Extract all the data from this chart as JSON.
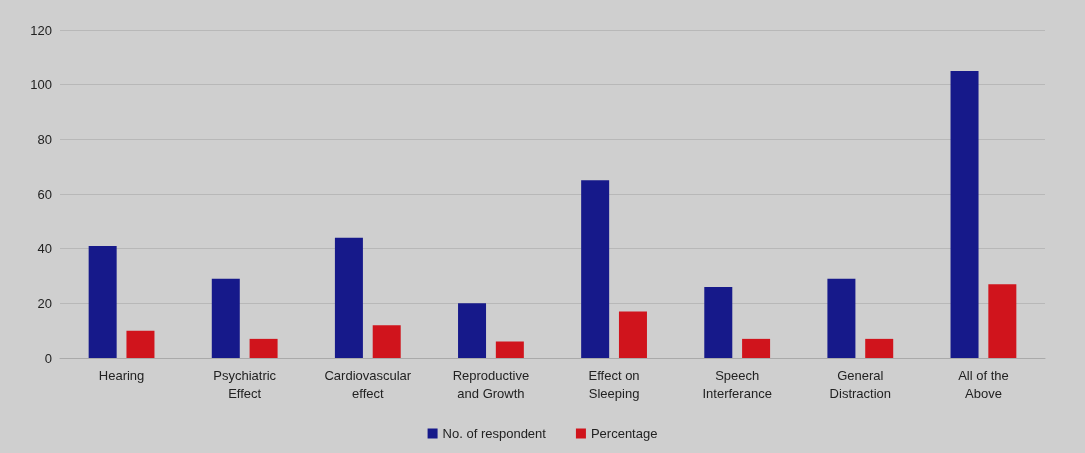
{
  "chart_data": {
    "type": "bar",
    "categories": [
      "Hearing",
      "Psychiatric\nEffect",
      "Cardiovascular\neffect",
      "Reproductive\nand Growth",
      "Effect on\nSleeping",
      "Speech\nInterferance",
      "General\nDistraction",
      "All of the\nAbove"
    ],
    "series": [
      {
        "name": "No. of respondent",
        "color": "#16198a",
        "values": [
          41,
          29,
          44,
          20,
          65,
          26,
          29,
          105
        ]
      },
      {
        "name": "Percentage",
        "color": "#d0141c",
        "values": [
          10,
          7,
          12,
          6,
          17,
          7,
          7,
          27
        ]
      }
    ],
    "ylim": [
      0,
      120
    ],
    "yticks": [
      0,
      20,
      40,
      60,
      80,
      100,
      120
    ],
    "grid": "y",
    "legend": "bottom"
  }
}
